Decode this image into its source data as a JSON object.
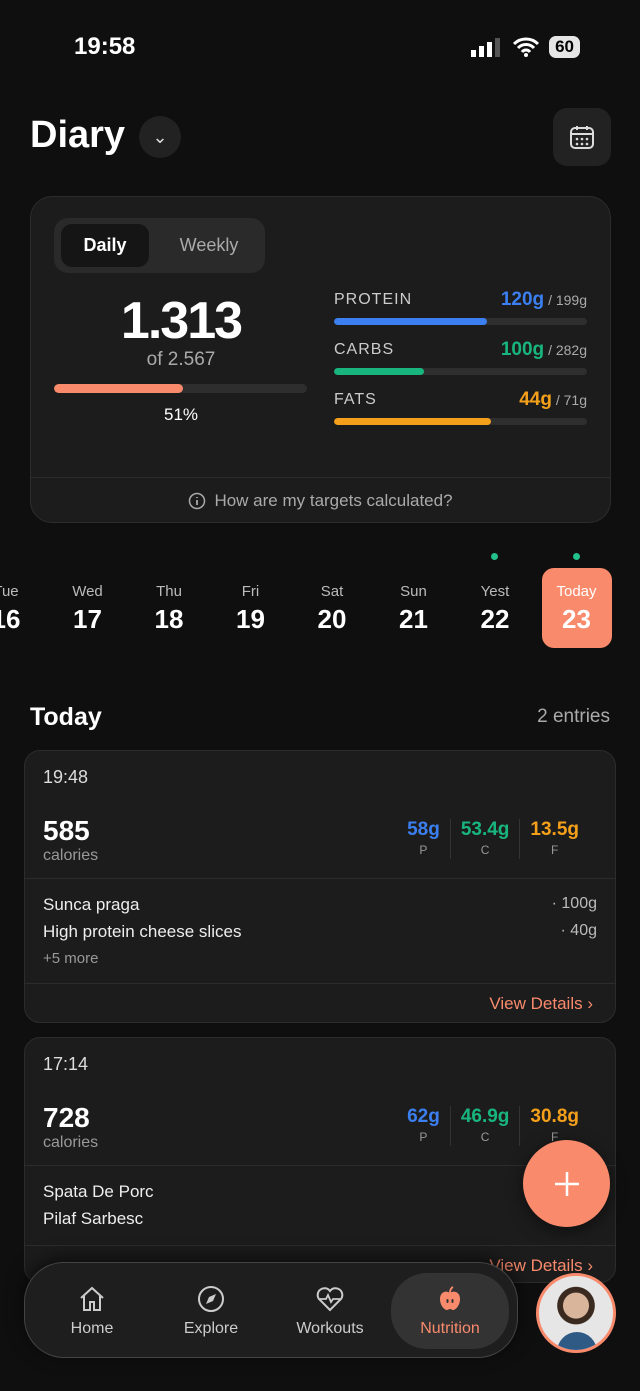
{
  "status": {
    "time": "19:58",
    "battery": "60"
  },
  "header": {
    "title": "Diary"
  },
  "summary": {
    "tabs": [
      "Daily",
      "Weekly"
    ],
    "active_tab": "Daily",
    "calories": "1.313",
    "target": "of 2.567",
    "percent_label": "51%",
    "percent": 51,
    "macros": [
      {
        "label": "PROTEIN",
        "value": "120g",
        "target": "/ 199g",
        "fraction": 0.603,
        "color": "#3b7ff0"
      },
      {
        "label": "CARBS",
        "value": "100g",
        "target": "/ 282g",
        "fraction": 0.355,
        "color": "#18b67e"
      },
      {
        "label": "FATS",
        "value": "44g",
        "target": "/ 71g",
        "fraction": 0.62,
        "color": "#f4a01a"
      }
    ],
    "footer": "How are my targets calculated?"
  },
  "days": [
    {
      "name": "Tue",
      "num": "16"
    },
    {
      "name": "Wed",
      "num": "17"
    },
    {
      "name": "Thu",
      "num": "18"
    },
    {
      "name": "Fri",
      "num": "19"
    },
    {
      "name": "Sat",
      "num": "20"
    },
    {
      "name": "Sun",
      "num": "21"
    },
    {
      "name": "Yest",
      "num": "22",
      "dot": true
    },
    {
      "name": "Today",
      "num": "23",
      "dot": true,
      "selected": true
    }
  ],
  "section": {
    "title": "Today",
    "count": "2 entries"
  },
  "entries": [
    {
      "time": "19:48",
      "calories": "585",
      "cal_label": "calories",
      "p": "58g",
      "c": "53.4g",
      "f": "13.5g",
      "foods": [
        {
          "name": "Sunca praga",
          "qty": "· 100g"
        },
        {
          "name": "High protein cheese slices",
          "qty": "· 40g"
        }
      ],
      "more": "+5 more",
      "details": "View Details"
    },
    {
      "time": "17:14",
      "calories": "728",
      "cal_label": "calories",
      "p": "62g",
      "c": "46.9g",
      "f": "30.8g",
      "foods": [
        {
          "name": "Spata De Porc",
          "qty": ""
        },
        {
          "name": "Pilaf Sarbesc",
          "qty": ""
        }
      ],
      "details": "View Details"
    }
  ],
  "macro_letters": {
    "p": "P",
    "c": "C",
    "f": "F"
  },
  "nav": [
    {
      "label": "Home",
      "icon": "home-icon"
    },
    {
      "label": "Explore",
      "icon": "compass-icon"
    },
    {
      "label": "Workouts",
      "icon": "heart-pulse-icon"
    },
    {
      "label": "Nutrition",
      "icon": "apple-icon",
      "active": true
    }
  ],
  "colors": {
    "accent": "#f98a6c",
    "protein": "#3b7ff0",
    "carbs": "#18b67e",
    "fats": "#f4a01a"
  }
}
